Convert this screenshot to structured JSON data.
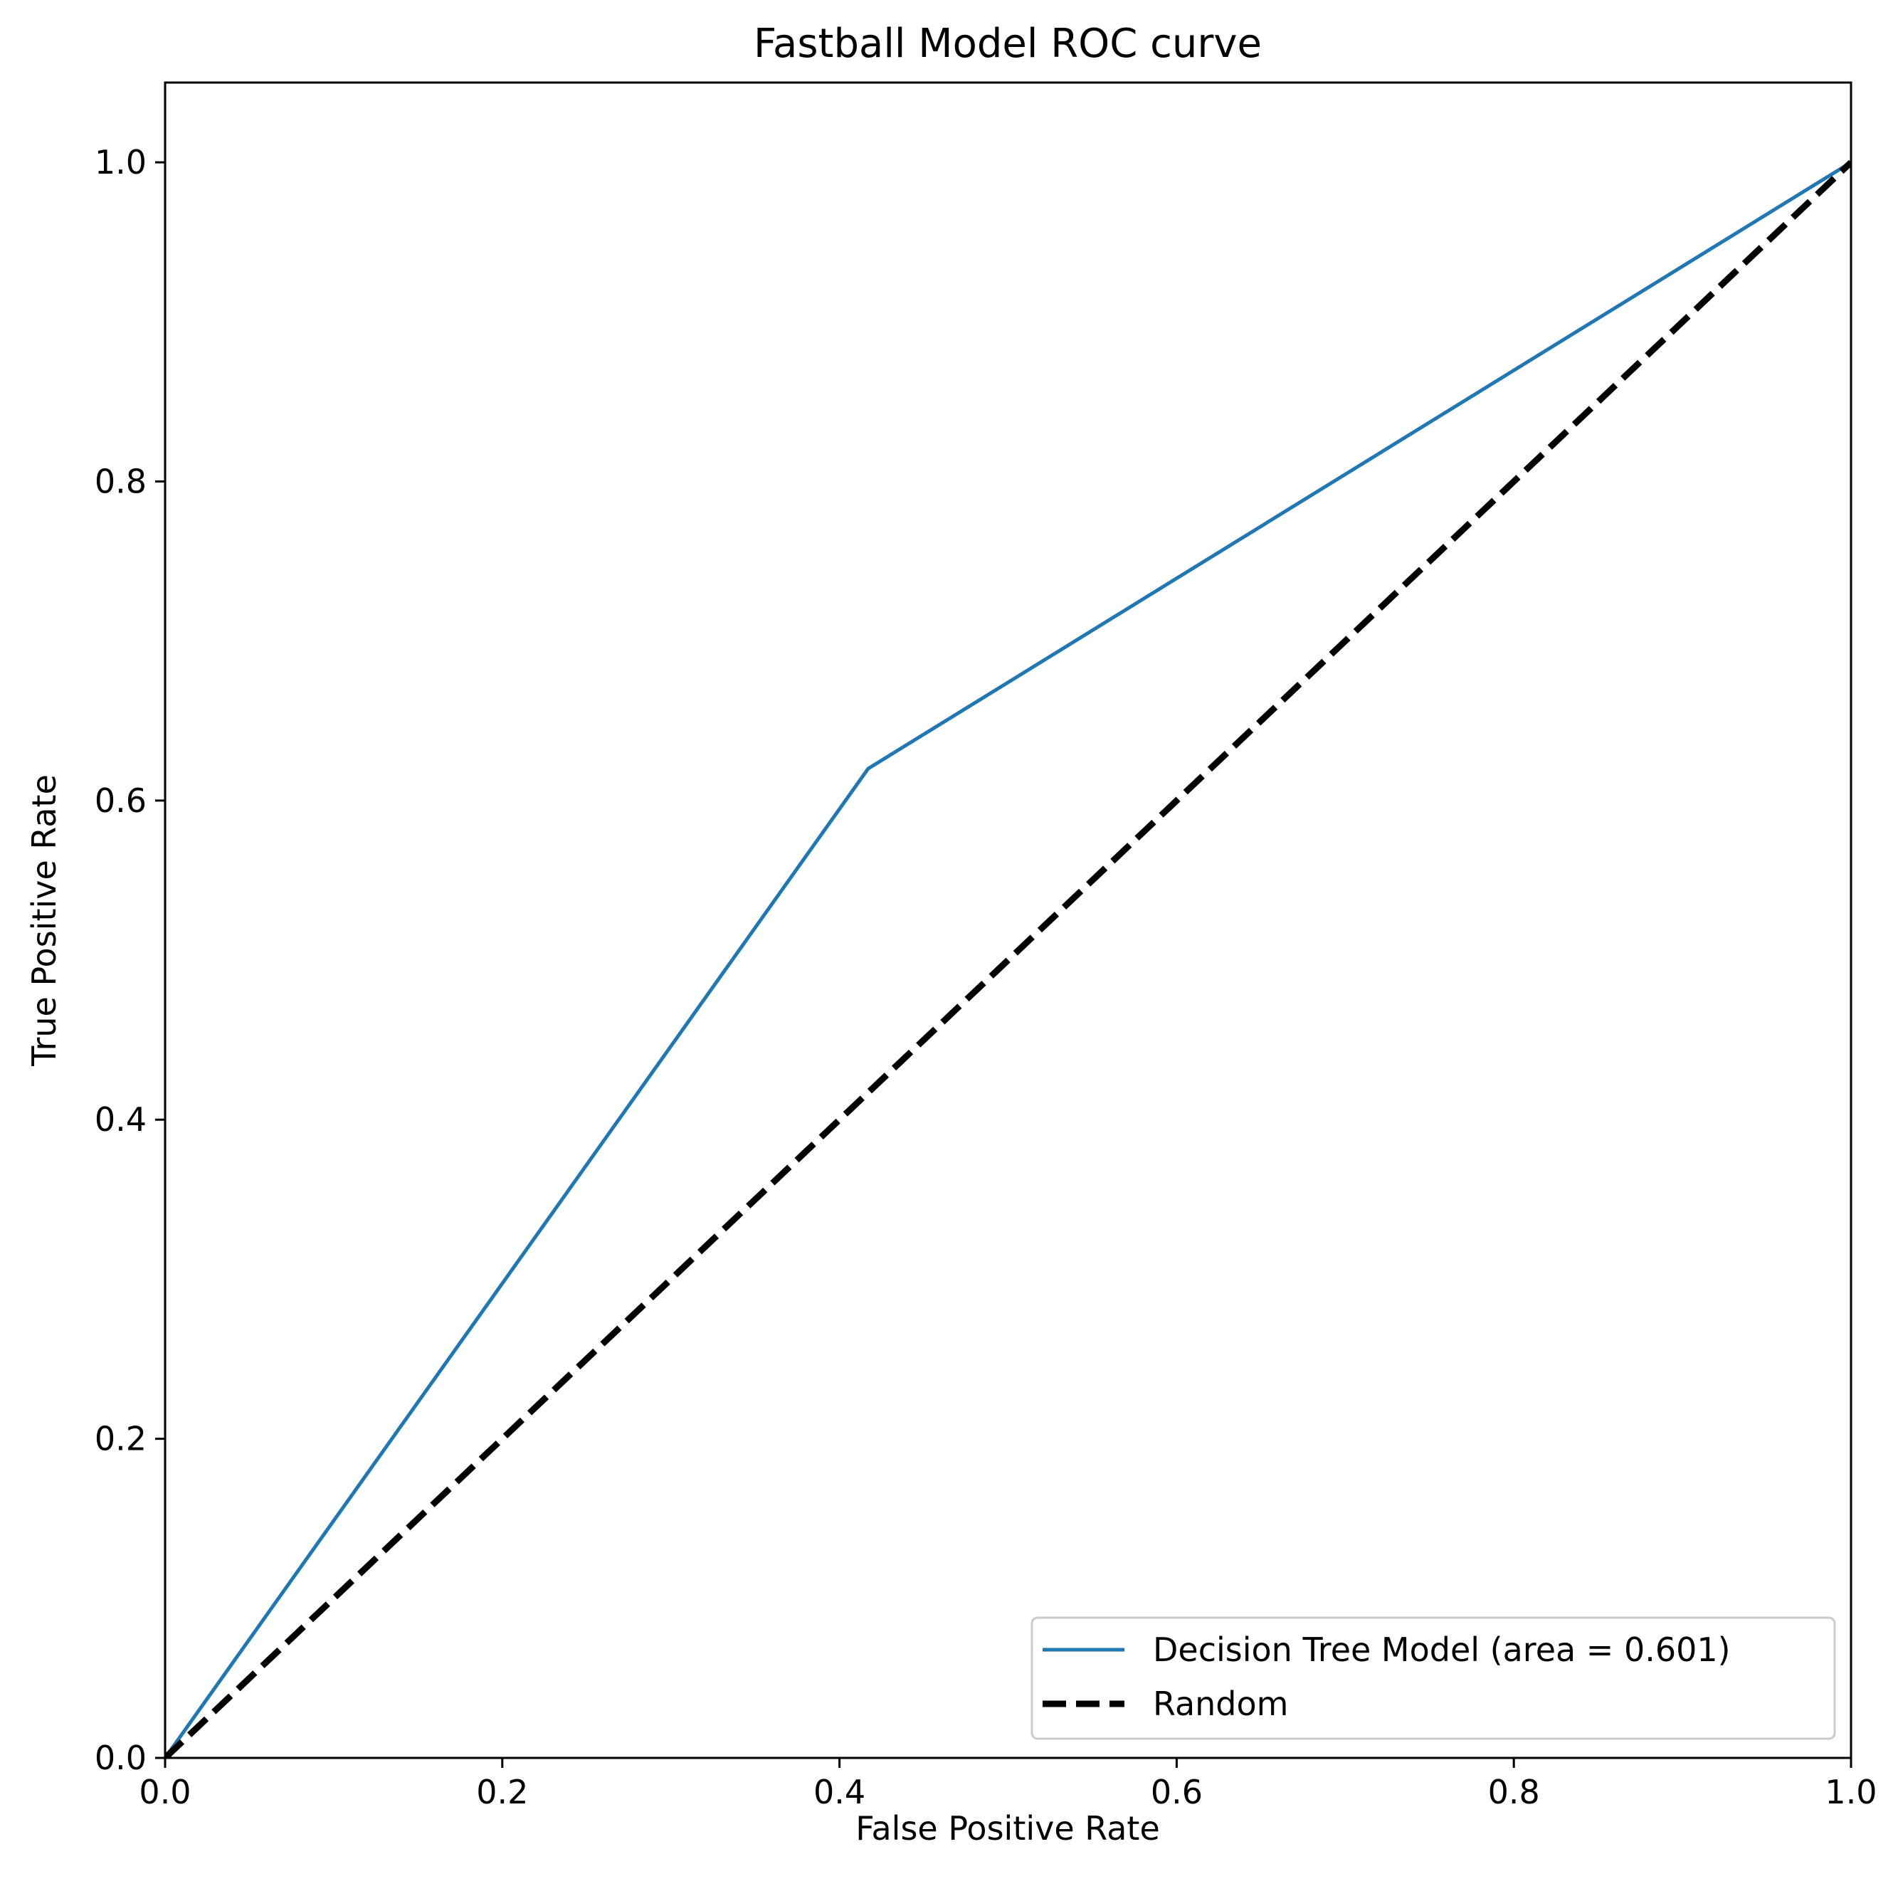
{
  "chart_data": {
    "type": "line",
    "title": "Fastball Model ROC curve",
    "xlabel": "False Positive Rate",
    "ylabel": "True Positive Rate",
    "xlim": [
      0.0,
      1.0
    ],
    "ylim": [
      0.0,
      1.05
    ],
    "x_ticks": [
      "0.0",
      "0.2",
      "0.4",
      "0.6",
      "0.8",
      "1.0"
    ],
    "y_ticks": [
      "0.0",
      "0.2",
      "0.4",
      "0.6",
      "0.8",
      "1.0"
    ],
    "grid": false,
    "legend_position": "lower-right",
    "series": [
      {
        "name": "Decision Tree Model (area = 0.601)",
        "color": "#1f77b4",
        "style": "solid",
        "x": [
          0.0,
          0.417,
          1.0
        ],
        "y": [
          0.0,
          0.62,
          1.0
        ]
      },
      {
        "name": "Random",
        "color": "#000000",
        "style": "dashed",
        "x": [
          0.0,
          1.0
        ],
        "y": [
          0.0,
          1.0
        ]
      }
    ]
  }
}
